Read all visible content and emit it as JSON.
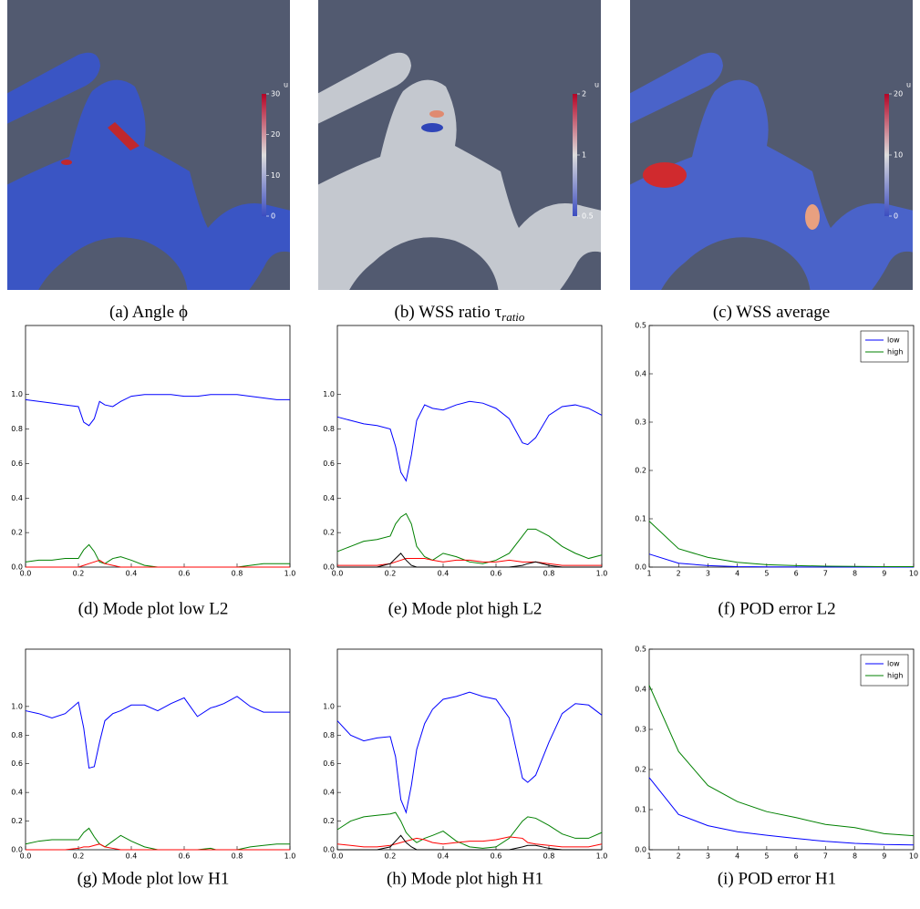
{
  "renders": [
    {
      "caption": "(a) Angle ϕ",
      "colorbar": {
        "title": "u",
        "lim": [
          0,
          30
        ],
        "ticks": [
          0,
          10,
          20,
          30
        ],
        "log": false
      }
    },
    {
      "caption": "(b) WSS ratio τ",
      "caption_subscript": "ratio",
      "colorbar": {
        "title": "u",
        "lim": [
          0.5,
          2
        ],
        "ticks": [
          0.5,
          1,
          2
        ],
        "log": true
      }
    },
    {
      "caption": "(c) WSS average",
      "colorbar": {
        "title": "u",
        "lim": [
          0,
          20
        ],
        "ticks": [
          0,
          10,
          20
        ],
        "log": false
      }
    }
  ],
  "chart_data": [
    {
      "type": "line",
      "caption": "(d) Mode plot low L2",
      "x": [
        0,
        0.05,
        0.1,
        0.15,
        0.2,
        0.22,
        0.24,
        0.26,
        0.28,
        0.3,
        0.33,
        0.36,
        0.4,
        0.45,
        0.5,
        0.55,
        0.6,
        0.65,
        0.7,
        0.72,
        0.75,
        0.8,
        0.85,
        0.9,
        0.95,
        1.0
      ],
      "xlim": [
        0,
        1
      ],
      "xticks": [
        {
          "value": 0,
          "label": "0.0"
        },
        0.2,
        0.4,
        0.6,
        0.8,
        {
          "value": 1,
          "label": "1.0"
        }
      ],
      "ylim": [
        0,
        1.4
      ],
      "yticks": [
        {
          "value": 0,
          "label": "0.0"
        },
        0.2,
        0.4,
        0.6,
        0.8,
        {
          "value": 1,
          "label": "1.0"
        }
      ],
      "series": [
        {
          "color": "#0000ff",
          "values": [
            0.97,
            0.96,
            0.95,
            0.94,
            0.93,
            0.84,
            0.82,
            0.86,
            0.96,
            0.94,
            0.93,
            0.96,
            0.99,
            1.0,
            1.0,
            1.0,
            0.99,
            0.99,
            1.0,
            1.0,
            1.0,
            1.0,
            0.99,
            0.98,
            0.97,
            0.97
          ]
        },
        {
          "color": "#008000",
          "values": [
            0.03,
            0.04,
            0.04,
            0.05,
            0.05,
            0.1,
            0.13,
            0.09,
            0.03,
            0.02,
            0.05,
            0.06,
            0.04,
            0.01,
            0,
            0,
            0,
            0,
            0,
            0,
            0,
            0,
            0.01,
            0.02,
            0.02,
            0.02
          ]
        },
        {
          "color": "#ff0000",
          "values": [
            0,
            0,
            0,
            0,
            0,
            0.01,
            0.02,
            0.03,
            0.04,
            0.02,
            0.01,
            0,
            0,
            0,
            0,
            0,
            0,
            0,
            0,
            0,
            0,
            0,
            0,
            0,
            0,
            0
          ]
        }
      ]
    },
    {
      "type": "line",
      "caption": "(e) Mode plot high L2",
      "x": [
        0,
        0.05,
        0.1,
        0.15,
        0.2,
        0.22,
        0.24,
        0.26,
        0.28,
        0.3,
        0.33,
        0.36,
        0.4,
        0.45,
        0.5,
        0.55,
        0.6,
        0.65,
        0.7,
        0.72,
        0.75,
        0.8,
        0.85,
        0.9,
        0.95,
        1.0
      ],
      "xlim": [
        0,
        1
      ],
      "xticks": [
        {
          "value": 0,
          "label": "0.0"
        },
        0.2,
        0.4,
        0.6,
        0.8,
        {
          "value": 1,
          "label": "1.0"
        }
      ],
      "ylim": [
        0,
        1.4
      ],
      "yticks": [
        {
          "value": 0,
          "label": "0.0"
        },
        0.2,
        0.4,
        0.6,
        0.8,
        {
          "value": 1,
          "label": "1.0"
        }
      ],
      "series": [
        {
          "color": "#0000ff",
          "values": [
            0.87,
            0.85,
            0.83,
            0.82,
            0.8,
            0.7,
            0.55,
            0.5,
            0.65,
            0.85,
            0.94,
            0.92,
            0.91,
            0.94,
            0.96,
            0.95,
            0.92,
            0.86,
            0.72,
            0.71,
            0.75,
            0.88,
            0.93,
            0.94,
            0.92,
            0.88
          ]
        },
        {
          "color": "#008000",
          "values": [
            0.09,
            0.12,
            0.15,
            0.16,
            0.18,
            0.25,
            0.29,
            0.31,
            0.25,
            0.12,
            0.06,
            0.04,
            0.08,
            0.06,
            0.03,
            0.02,
            0.04,
            0.08,
            0.18,
            0.22,
            0.22,
            0.18,
            0.12,
            0.08,
            0.05,
            0.07
          ]
        },
        {
          "color": "#ff0000",
          "values": [
            0.01,
            0.01,
            0.01,
            0.01,
            0.02,
            0.03,
            0.04,
            0.05,
            0.05,
            0.05,
            0.05,
            0.04,
            0.03,
            0.04,
            0.04,
            0.03,
            0.03,
            0.04,
            0.03,
            0.03,
            0.03,
            0.02,
            0.01,
            0.01,
            0.01,
            0.01
          ]
        },
        {
          "color": "#000000",
          "values": [
            0,
            0,
            0,
            0,
            0.02,
            0.05,
            0.08,
            0.04,
            0.01,
            0,
            0,
            0,
            0,
            0,
            0,
            0,
            0,
            0,
            0.01,
            0.02,
            0.03,
            0.01,
            0,
            0,
            0,
            0
          ]
        }
      ]
    },
    {
      "type": "line",
      "caption": "(f) POD error L2",
      "x": [
        1,
        2,
        3,
        4,
        5,
        6,
        7,
        8,
        9,
        10
      ],
      "xlim": [
        1,
        10
      ],
      "xticks": [
        1,
        2,
        3,
        4,
        5,
        6,
        7,
        8,
        9,
        10
      ],
      "ylim": [
        0,
        0.5
      ],
      "yticks": [
        {
          "value": 0,
          "label": "0.0"
        },
        0.1,
        0.2,
        0.3,
        0.4,
        0.5
      ],
      "legend": "upper right",
      "series": [
        {
          "name": "low",
          "color": "#0000ff",
          "values": [
            0.027,
            0.008,
            0.003,
            0.001,
            0.0005,
            0.0003,
            0.0002,
            0.0001,
            0.0001,
            0.0001
          ]
        },
        {
          "name": "high",
          "color": "#008000",
          "values": [
            0.095,
            0.038,
            0.02,
            0.01,
            0.005,
            0.003,
            0.002,
            0.0015,
            0.001,
            0.001
          ]
        }
      ]
    },
    {
      "type": "line",
      "caption": "(g) Mode plot low H1",
      "x": [
        0,
        0.05,
        0.1,
        0.15,
        0.2,
        0.22,
        0.24,
        0.26,
        0.28,
        0.3,
        0.33,
        0.36,
        0.4,
        0.45,
        0.5,
        0.55,
        0.6,
        0.65,
        0.7,
        0.72,
        0.75,
        0.8,
        0.85,
        0.9,
        0.95,
        1.0
      ],
      "xlim": [
        0,
        1
      ],
      "xticks": [
        {
          "value": 0,
          "label": "0.0"
        },
        0.2,
        0.4,
        0.6,
        0.8,
        {
          "value": 1,
          "label": "1.0"
        }
      ],
      "ylim": [
        0,
        1.4
      ],
      "yticks": [
        {
          "value": 0,
          "label": "0.0"
        },
        0.2,
        0.4,
        0.6,
        0.8,
        {
          "value": 1,
          "label": "1.0"
        }
      ],
      "series": [
        {
          "color": "#0000ff",
          "values": [
            0.97,
            0.95,
            0.92,
            0.95,
            1.03,
            0.85,
            0.57,
            0.58,
            0.75,
            0.9,
            0.95,
            0.97,
            1.01,
            1.01,
            0.97,
            1.02,
            1.06,
            0.93,
            0.99,
            1.0,
            1.02,
            1.07,
            1.0,
            0.96,
            0.96,
            0.96
          ]
        },
        {
          "color": "#008000",
          "values": [
            0.04,
            0.06,
            0.07,
            0.07,
            0.07,
            0.12,
            0.15,
            0.09,
            0.04,
            0.02,
            0.06,
            0.1,
            0.06,
            0.02,
            0,
            0,
            0,
            0,
            0.01,
            0,
            0,
            0,
            0.02,
            0.03,
            0.04,
            0.04
          ]
        },
        {
          "color": "#ff0000",
          "values": [
            0,
            0,
            0,
            0,
            0.01,
            0.02,
            0.02,
            0.03,
            0.04,
            0.02,
            0.01,
            0,
            0,
            0,
            0,
            0,
            0,
            0,
            0,
            0,
            0,
            0,
            0,
            0,
            0,
            0
          ]
        }
      ]
    },
    {
      "type": "line",
      "caption": "(h) Mode plot high H1",
      "x": [
        0,
        0.05,
        0.1,
        0.15,
        0.2,
        0.22,
        0.24,
        0.26,
        0.28,
        0.3,
        0.33,
        0.36,
        0.4,
        0.45,
        0.5,
        0.55,
        0.6,
        0.65,
        0.7,
        0.72,
        0.75,
        0.8,
        0.85,
        0.9,
        0.95,
        1.0
      ],
      "xlim": [
        0,
        1
      ],
      "xticks": [
        {
          "value": 0,
          "label": "0.0"
        },
        0.2,
        0.4,
        0.6,
        0.8,
        {
          "value": 1,
          "label": "1.0"
        }
      ],
      "ylim": [
        0,
        1.4
      ],
      "yticks": [
        {
          "value": 0,
          "label": "0.0"
        },
        0.2,
        0.4,
        0.6,
        0.8,
        {
          "value": 1,
          "label": "1.0"
        }
      ],
      "series": [
        {
          "color": "#0000ff",
          "values": [
            0.9,
            0.8,
            0.76,
            0.78,
            0.79,
            0.65,
            0.35,
            0.26,
            0.45,
            0.7,
            0.88,
            0.98,
            1.05,
            1.07,
            1.1,
            1.07,
            1.05,
            0.92,
            0.5,
            0.47,
            0.52,
            0.75,
            0.95,
            1.02,
            1.01,
            0.94
          ]
        },
        {
          "color": "#008000",
          "values": [
            0.14,
            0.2,
            0.23,
            0.24,
            0.25,
            0.26,
            0.2,
            0.12,
            0.08,
            0.05,
            0.08,
            0.1,
            0.13,
            0.06,
            0.02,
            0.01,
            0.02,
            0.08,
            0.2,
            0.23,
            0.22,
            0.17,
            0.11,
            0.08,
            0.08,
            0.12
          ]
        },
        {
          "color": "#ff0000",
          "values": [
            0.04,
            0.03,
            0.02,
            0.02,
            0.03,
            0.04,
            0.05,
            0.06,
            0.07,
            0.08,
            0.07,
            0.05,
            0.04,
            0.05,
            0.06,
            0.06,
            0.07,
            0.09,
            0.08,
            0.05,
            0.04,
            0.03,
            0.02,
            0.02,
            0.02,
            0.04
          ]
        },
        {
          "color": "#000000",
          "values": [
            0,
            0,
            0,
            0,
            0.02,
            0.06,
            0.1,
            0.05,
            0.02,
            0,
            0,
            0,
            0,
            0,
            0,
            0,
            0,
            0,
            0.02,
            0.03,
            0.03,
            0.01,
            0,
            0,
            0,
            0
          ]
        }
      ]
    },
    {
      "type": "line",
      "caption": "(i) POD error H1",
      "x": [
        1,
        2,
        3,
        4,
        5,
        6,
        7,
        8,
        9,
        10
      ],
      "xlim": [
        1,
        10
      ],
      "xticks": [
        1,
        2,
        3,
        4,
        5,
        6,
        7,
        8,
        9,
        10
      ],
      "ylim": [
        0,
        0.5
      ],
      "yticks": [
        {
          "value": 0,
          "label": "0.0"
        },
        0.1,
        0.2,
        0.3,
        0.4,
        0.5
      ],
      "legend": "upper right",
      "series": [
        {
          "name": "low",
          "color": "#0000ff",
          "values": [
            0.18,
            0.088,
            0.06,
            0.045,
            0.036,
            0.028,
            0.021,
            0.016,
            0.013,
            0.012
          ]
        },
        {
          "name": "high",
          "color": "#008000",
          "values": [
            0.41,
            0.245,
            0.16,
            0.12,
            0.095,
            0.08,
            0.063,
            0.055,
            0.04,
            0.035
          ]
        }
      ]
    }
  ]
}
